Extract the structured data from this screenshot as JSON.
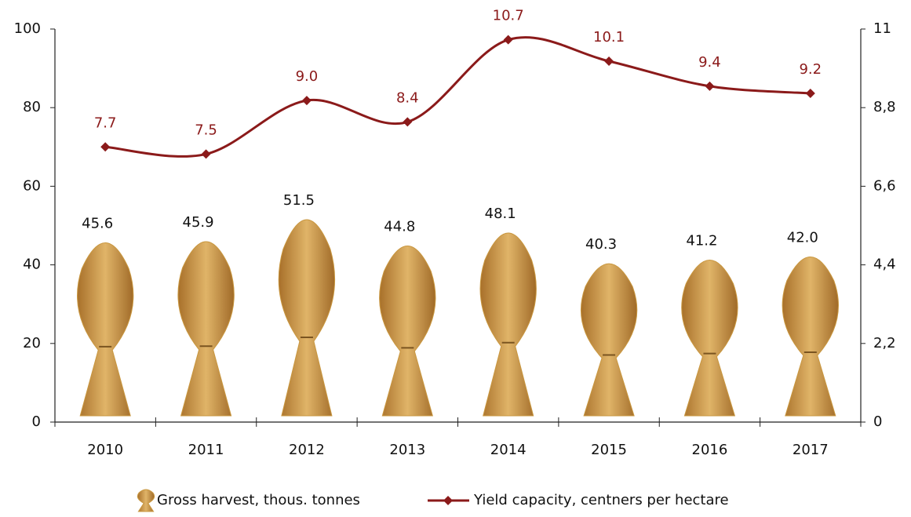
{
  "chart_data": {
    "type": "bar_line",
    "categories": [
      "2010",
      "2011",
      "2012",
      "2013",
      "2014",
      "2015",
      "2016",
      "2017"
    ],
    "series": [
      {
        "name": "Gross harvest, thous. tonnes",
        "type": "pictograph",
        "color": "#c9973f",
        "values": [
          45.6,
          45.9,
          51.5,
          44.8,
          48.1,
          40.3,
          41.2,
          42.0
        ],
        "value_labels": [
          "45.6",
          "45.9",
          "51.5",
          "44.8",
          "48.1",
          "40.3",
          "41.2",
          "42.0"
        ]
      },
      {
        "name": "Yield capacity, centners per hectare",
        "type": "line",
        "axis": "y2",
        "color": "#8b1a1a",
        "values": [
          7.7,
          7.5,
          9.0,
          8.4,
          10.7,
          10.1,
          9.4,
          9.2
        ],
        "value_labels": [
          "7.7",
          "7.5",
          "9.0",
          "8.4",
          "10.7",
          "10.1",
          "9.4",
          "9.2"
        ]
      }
    ],
    "ylim": [
      0,
      100
    ],
    "yticks": [
      0,
      20,
      40,
      60,
      80,
      100
    ],
    "y2lim": [
      0,
      11
    ],
    "y2ticks": [
      0,
      {
        "value": 2.2,
        "label": "2,2"
      },
      {
        "value": 4.4,
        "label": "4,4"
      },
      {
        "value": 6.6,
        "label": "6,6"
      },
      {
        "value": 8.8,
        "label": "8,8"
      },
      11
    ],
    "legend": "bottom"
  }
}
